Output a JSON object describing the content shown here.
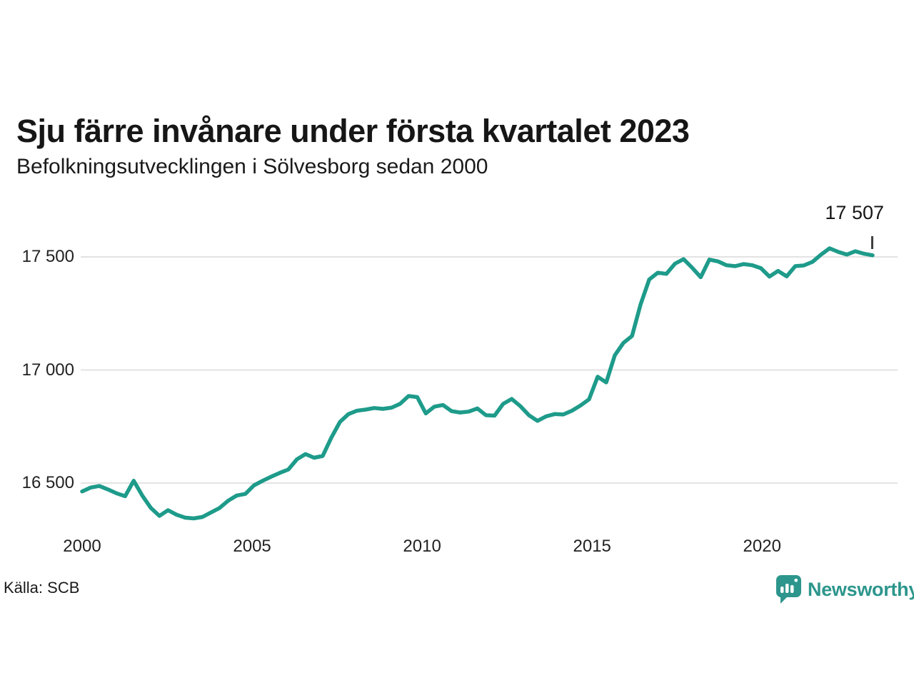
{
  "header": {
    "title": "Sju färre invånare under första kvartalet 2023",
    "subtitle": "Befolkningsutvecklingen i Sölvesborg sedan 2000"
  },
  "footer": {
    "source": "Källa: SCB",
    "brand": "Newsworthy"
  },
  "colors": {
    "line": "#1e9b8a",
    "grid": "#e3e3e3",
    "brand_teal": "#2d968c",
    "text": "#161616"
  },
  "chart_data": {
    "type": "line",
    "title": "Sju färre invånare under första kvartalet 2023",
    "subtitle": "Befolkningsutvecklingen i Sölvesborg sedan 2000",
    "frequency": "quarterly",
    "x_start": "2000 Q1",
    "x_end": "2023 Q1",
    "x_tick_labels": [
      "2000",
      "2005",
      "2010",
      "2015",
      "2020"
    ],
    "x_tick_years": [
      2000,
      2005,
      2010,
      2015,
      2020
    ],
    "y_tick_labels": [
      "17 500",
      "17 000",
      "16 500"
    ],
    "y_tick_values": [
      17500,
      17000,
      16500
    ],
    "ylim": [
      16300,
      17700
    ],
    "grid": true,
    "legend": false,
    "annotation": {
      "label": "17 507",
      "value": 17507,
      "x": "2023 Q1"
    },
    "series": [
      {
        "name": "Befolkningsutvecklingen i Sölvesborg",
        "values": [
          16463,
          16480,
          16487,
          16472,
          16455,
          16442,
          16510,
          16445,
          16390,
          16355,
          16380,
          16360,
          16347,
          16344,
          16350,
          16370,
          16390,
          16422,
          16445,
          16452,
          16490,
          16510,
          16528,
          16545,
          16560,
          16605,
          16628,
          16612,
          16620,
          16700,
          16770,
          16805,
          16820,
          16825,
          16832,
          16828,
          16833,
          16850,
          16885,
          16880,
          16808,
          16838,
          16845,
          16818,
          16812,
          16816,
          16830,
          16800,
          16798,
          16850,
          16872,
          16840,
          16800,
          16775,
          16795,
          16805,
          16803,
          16820,
          16843,
          16870,
          16970,
          16945,
          17065,
          17120,
          17150,
          17290,
          17400,
          17430,
          17425,
          17470,
          17490,
          17452,
          17410,
          17488,
          17480,
          17463,
          17459,
          17468,
          17463,
          17450,
          17413,
          17438,
          17414,
          17459,
          17462,
          17478,
          17510,
          17538,
          17522,
          17510,
          17525,
          17514,
          17507
        ]
      }
    ]
  }
}
